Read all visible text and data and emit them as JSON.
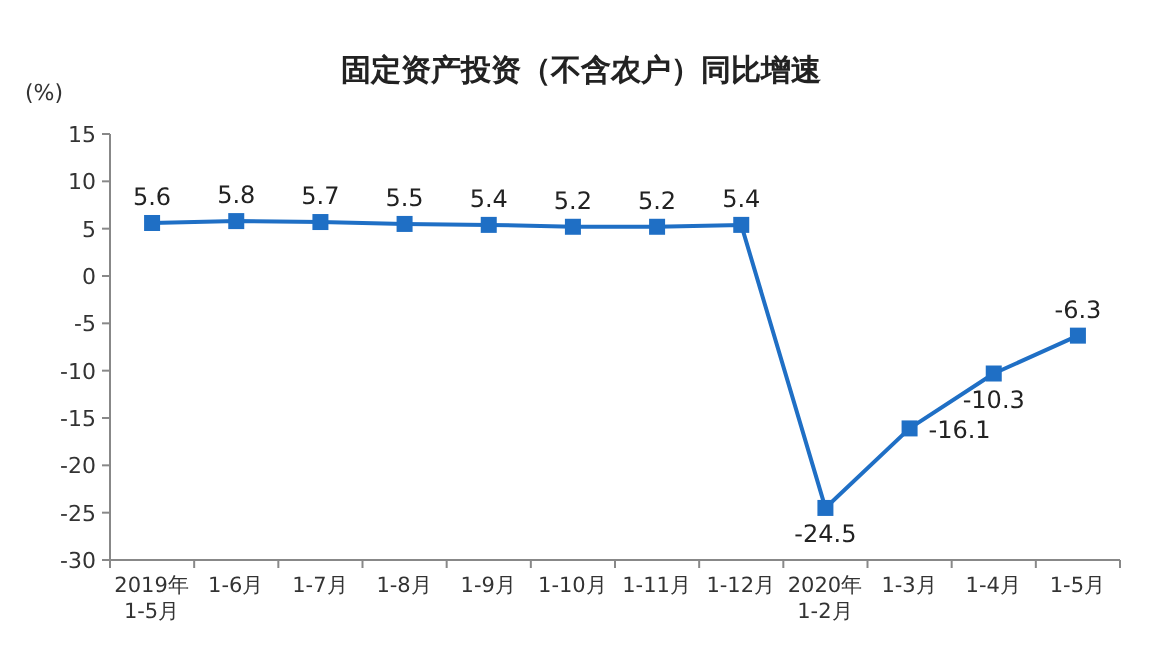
{
  "chart_data": {
    "type": "line",
    "title": "固定资产投资（不含农户）同比增速",
    "ylabel": "(%)",
    "categories": [
      "2019年\n1-5月",
      "1-6月",
      "1-7月",
      "1-8月",
      "1-9月",
      "1-10月",
      "1-11月",
      "1-12月",
      "2020年\n1-2月",
      "1-3月",
      "1-4月",
      "1-5月"
    ],
    "series": [
      {
        "color": "#1f6fc5",
        "values": [
          5.6,
          5.8,
          5.7,
          5.5,
          5.4,
          5.2,
          5.2,
          5.4,
          -24.5,
          -16.1,
          -10.3,
          -6.3
        ]
      }
    ],
    "ylim": [
      -30,
      15
    ],
    "yticks": [
      -30,
      -25,
      -20,
      -15,
      -10,
      -5,
      0,
      5,
      10,
      15
    ],
    "marker": "square",
    "data_labels": true
  }
}
